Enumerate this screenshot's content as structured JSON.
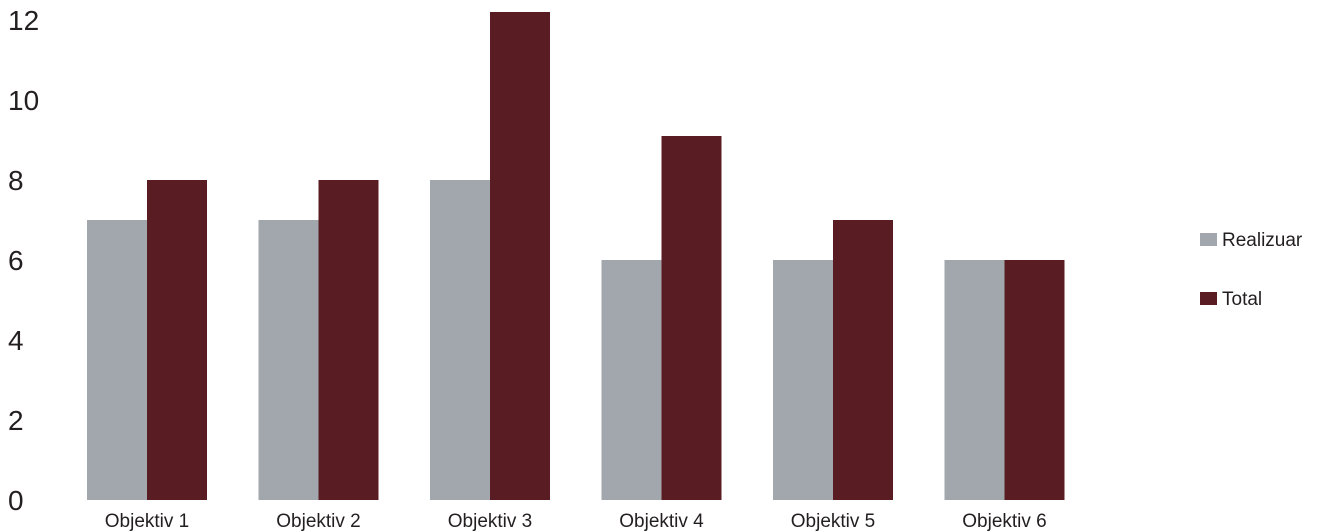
{
  "chart_data": {
    "type": "bar",
    "categories": [
      "Objektiv 1",
      "Objektiv 2",
      "Objektiv 3",
      "Objektiv 4",
      "Objektiv 5",
      "Objektiv 6"
    ],
    "series": [
      {
        "name": "Realizuar",
        "values": [
          7,
          7,
          8,
          6,
          6,
          6
        ],
        "color": "#a2a7ae"
      },
      {
        "name": "Total",
        "values": [
          8,
          8,
          12.2,
          9.1,
          7,
          6
        ],
        "color": "#5a1c23"
      }
    ],
    "title": "",
    "xlabel": "",
    "ylabel": "",
    "ylim": [
      0,
      12
    ],
    "yticks": [
      0,
      2,
      4,
      6,
      8,
      10,
      12
    ],
    "grid": false,
    "legend_position": "right"
  }
}
